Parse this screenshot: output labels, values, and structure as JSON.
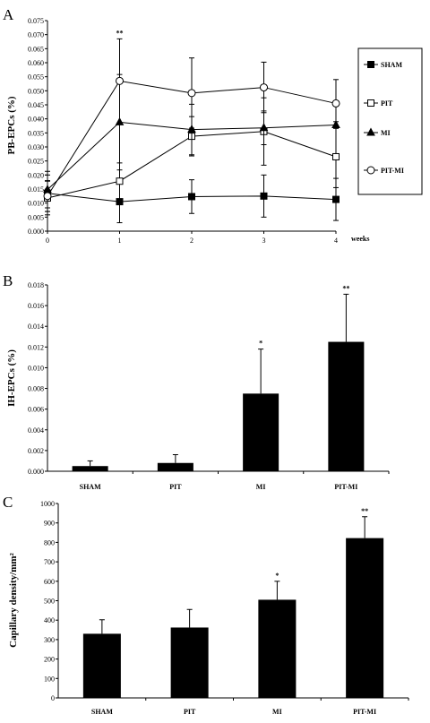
{
  "chart_data": [
    {
      "panel": "A",
      "type": "line",
      "ylabel": "PB-EPCs (%)",
      "xlabel": "weeks",
      "x": [
        0,
        1,
        2,
        3,
        4
      ],
      "xlim": [
        0,
        4
      ],
      "ylim": [
        0,
        0.075
      ],
      "ytick_step": 0.005,
      "ytick_decimals": 3,
      "grid": false,
      "legend": "right",
      "series": [
        {
          "name": "SHAM",
          "marker": "square-filled",
          "values": [
            0.0135,
            0.0105,
            0.0123,
            0.0125,
            0.0113
          ],
          "errors": [
            0.0065,
            0.0075,
            0.006,
            0.0075,
            0.0075
          ]
        },
        {
          "name": "PIT",
          "marker": "square-open",
          "values": [
            0.0118,
            0.0178,
            0.0338,
            0.0355,
            0.0265
          ],
          "errors": [
            0.006,
            0.0065,
            0.007,
            0.012,
            0.011
          ]
        },
        {
          "name": "MI",
          "marker": "triangle-filled",
          "values": [
            0.0148,
            0.0388,
            0.0362,
            0.0368,
            0.0378
          ],
          "errors": [
            0.0065,
            0.017,
            0.009,
            0.006,
            0.0012
          ]
        },
        {
          "name": "PIT-MI",
          "marker": "circle-open",
          "values": [
            0.0125,
            0.0535,
            0.0492,
            0.0512,
            0.0455
          ],
          "errors": [
            0.0055,
            0.015,
            0.0125,
            0.009,
            0.0085
          ]
        }
      ],
      "annotations": [
        {
          "x": 1,
          "text": "**"
        }
      ]
    },
    {
      "panel": "B",
      "type": "bar",
      "ylabel": "IH-EPCs (%)",
      "categories": [
        "SHAM",
        "PIT",
        "MI",
        "PIT-MI"
      ],
      "values": [
        0.0005,
        0.0008,
        0.0075,
        0.0125
      ],
      "errors": [
        0.0005,
        0.0008,
        0.0043,
        0.0046
      ],
      "sig": [
        "",
        "",
        "*",
        "**"
      ],
      "ylim": [
        0,
        0.018
      ],
      "ytick_step": 0.002,
      "ytick_decimals": 3
    },
    {
      "panel": "C",
      "type": "bar",
      "ylabel": "Capillary density/mm²",
      "categories": [
        "SHAM",
        "PIT",
        "MI",
        "PIT-MI"
      ],
      "values": [
        330,
        362,
        505,
        822
      ],
      "errors": [
        72,
        93,
        95,
        110
      ],
      "sig": [
        "",
        "",
        "*",
        "**"
      ],
      "ylim": [
        0,
        1000
      ],
      "ytick_step": 100,
      "ytick_decimals": 0
    }
  ]
}
